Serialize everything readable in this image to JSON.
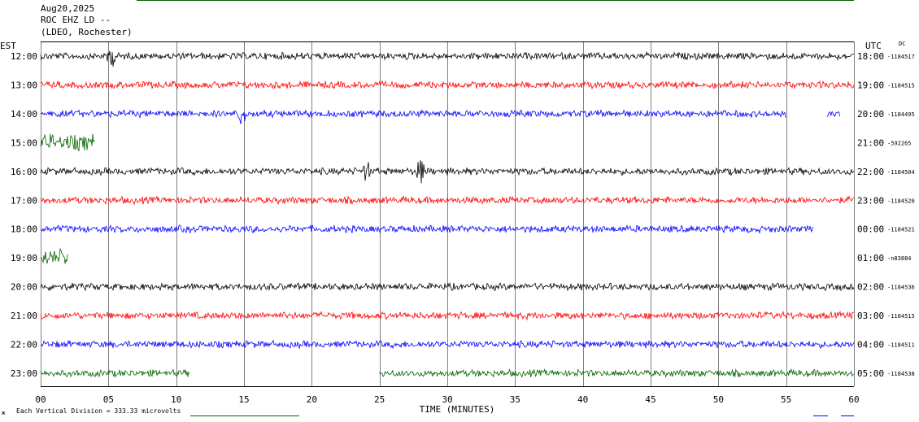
{
  "header": {
    "date": "Aug20,2025",
    "station": "ROC EHZ LD --",
    "network": "(LDEO, Rochester)"
  },
  "left_axis_label": "EST",
  "right_axis_label": "UTC",
  "dc_label": "DC",
  "footer": {
    "scale_note": "Each Vertical Division =  333.33 microvolts",
    "corner_mark": "ж"
  },
  "colors": {
    "black": "#000000",
    "red": "#ff0000",
    "blue": "#0000ff",
    "green": "#006400",
    "grid": "#808080"
  },
  "chart_data": {
    "type": "line",
    "title": "",
    "xlabel": "TIME (MINUTES)",
    "ylabel": "",
    "xlim": [
      0,
      60
    ],
    "x_ticks": [
      "00",
      "05",
      "10",
      "15",
      "20",
      "25",
      "30",
      "35",
      "40",
      "45",
      "50",
      "55",
      "60"
    ],
    "grid": "vertical every 5 minutes",
    "rows": [
      {
        "est": "12:00",
        "utc": "18:00",
        "dc": "-1184517",
        "color": "black",
        "segments": [
          [
            0,
            60
          ]
        ]
      },
      {
        "est": "13:00",
        "utc": "19:00",
        "dc": "-1184515",
        "color": "red",
        "segments": [
          [
            0,
            60
          ]
        ]
      },
      {
        "est": "14:00",
        "utc": "20:00",
        "dc": "-1184495",
        "color": "blue",
        "segments": [
          [
            0,
            55
          ],
          [
            58,
            59
          ]
        ]
      },
      {
        "est": "15:00",
        "utc": "21:00",
        "dc": "-592265",
        "color": "green",
        "segments": [
          [
            0,
            4
          ]
        ]
      },
      {
        "est": "16:00",
        "utc": "22:00",
        "dc": "-1184504",
        "color": "black",
        "segments": [
          [
            0,
            60
          ]
        ]
      },
      {
        "est": "17:00",
        "utc": "23:00",
        "dc": "-1184520",
        "color": "red",
        "segments": [
          [
            0,
            60
          ]
        ]
      },
      {
        "est": "18:00",
        "utc": "00:00",
        "dc": "-1184521",
        "color": "blue",
        "segments": [
          [
            0,
            57
          ]
        ]
      },
      {
        "est": "19:00",
        "utc": "01:00",
        "dc": "-n83884",
        "color": "green",
        "segments": [
          [
            0,
            2
          ]
        ]
      },
      {
        "est": "20:00",
        "utc": "02:00",
        "dc": "-1184536",
        "color": "black",
        "segments": [
          [
            0,
            60
          ]
        ]
      },
      {
        "est": "21:00",
        "utc": "03:00",
        "dc": "-1184515",
        "color": "red",
        "segments": [
          [
            0,
            60
          ]
        ]
      },
      {
        "est": "22:00",
        "utc": "04:00",
        "dc": "-1184511",
        "color": "blue",
        "segments": [
          [
            0,
            60
          ]
        ]
      },
      {
        "est": "23:00",
        "utc": "05:00",
        "dc": "-1184538",
        "color": "green",
        "segments": [
          [
            0,
            11
          ],
          [
            25,
            60
          ]
        ]
      }
    ],
    "events": [
      {
        "row": 0,
        "minute": 5.2,
        "note": "spike"
      },
      {
        "row": 2,
        "minute": 14.8,
        "note": "large spike"
      },
      {
        "row": 4,
        "minute": 24,
        "note": "burst"
      },
      {
        "row": 4,
        "minute": 28,
        "note": "burst"
      }
    ]
  }
}
